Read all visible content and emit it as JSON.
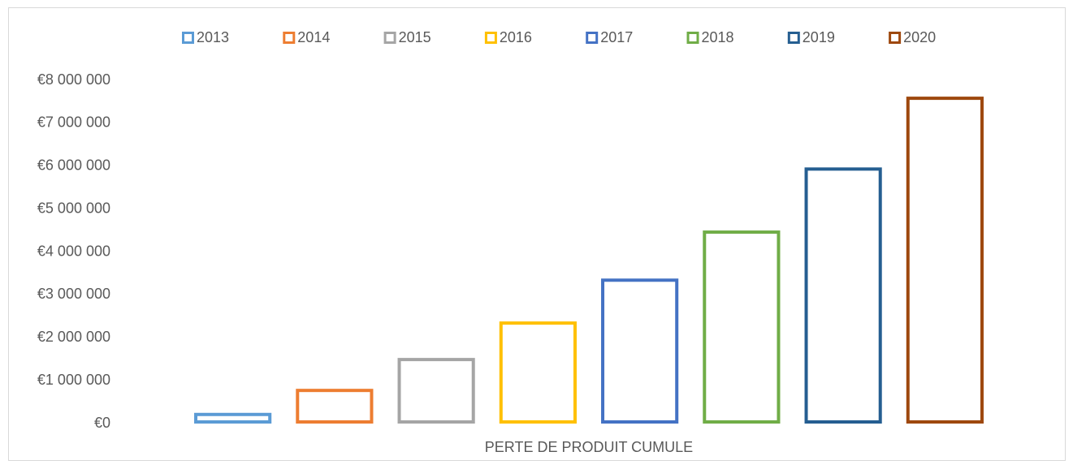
{
  "chart_data": {
    "type": "bar",
    "categories": [
      "PERTE DE PRODUIT CUMULE"
    ],
    "series": [
      {
        "name": "2013",
        "color": "#5b9bd5",
        "values": [
          250000
        ]
      },
      {
        "name": "2014",
        "color": "#ed7d31",
        "values": [
          810000
        ]
      },
      {
        "name": "2015",
        "color": "#a5a5a5",
        "values": [
          1530000
        ]
      },
      {
        "name": "2016",
        "color": "#ffc000",
        "values": [
          2380000
        ]
      },
      {
        "name": "2017",
        "color": "#4472c4",
        "values": [
          3380000
        ]
      },
      {
        "name": "2018",
        "color": "#70ad47",
        "values": [
          4500000
        ]
      },
      {
        "name": "2019",
        "color": "#255e91",
        "values": [
          5970000
        ]
      },
      {
        "name": "2020",
        "color": "#9e480e",
        "values": [
          7620000
        ]
      }
    ],
    "ylim": [
      0,
      8000000
    ],
    "yticks": [
      {
        "value": 0,
        "label": "€0"
      },
      {
        "value": 1000000,
        "label": "€1 000 000"
      },
      {
        "value": 2000000,
        "label": "€2 000 000"
      },
      {
        "value": 3000000,
        "label": "€3 000 000"
      },
      {
        "value": 4000000,
        "label": "€4 000 000"
      },
      {
        "value": 5000000,
        "label": "€5 000 000"
      },
      {
        "value": 6000000,
        "label": "€6 000 000"
      },
      {
        "value": 7000000,
        "label": "€7 000 000"
      },
      {
        "value": 8000000,
        "label": "€8 000 000"
      }
    ],
    "grid": false,
    "legend": "top"
  }
}
